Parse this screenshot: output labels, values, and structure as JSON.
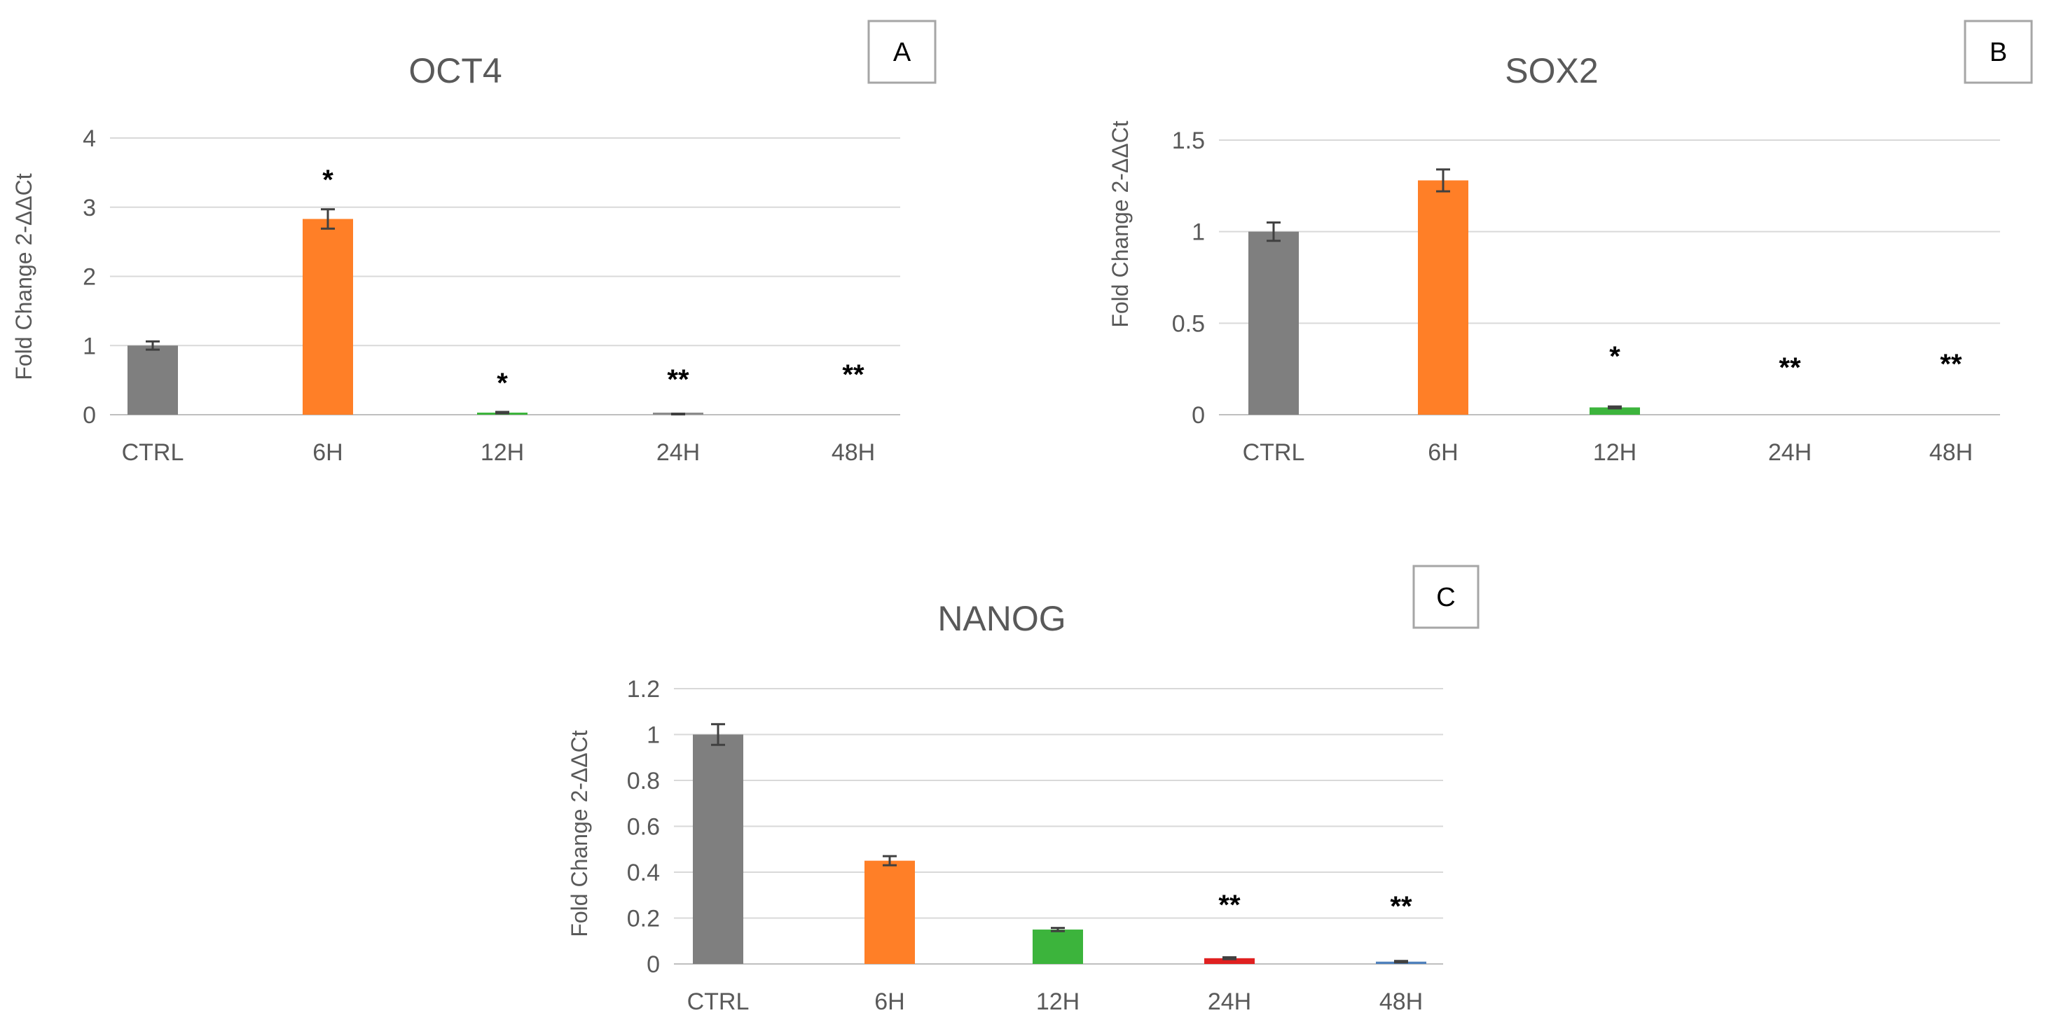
{
  "chart_data": [
    {
      "type": "bar",
      "panel_label": "A",
      "title": "OCT4",
      "ylabel": "Fold Change 2-ΔΔCt",
      "categories": [
        "CTRL",
        "6H",
        "12H",
        "24H",
        "48H"
      ],
      "values": [
        1.0,
        2.83,
        0.03,
        0.01,
        0.0
      ],
      "errors": [
        0.06,
        0.14,
        0.01,
        0.005,
        0.0
      ],
      "significance": [
        "",
        "*",
        "*",
        "**",
        "**"
      ],
      "ylim": [
        0,
        4
      ],
      "yticks": [
        "0",
        "1",
        "2",
        "3",
        "4"
      ],
      "grid": true,
      "bar_colors": [
        "#7f7f7f",
        "#ff7f27",
        "#3cb43c",
        "#8c8c8c",
        "#4f81bd"
      ]
    },
    {
      "type": "bar",
      "panel_label": "B",
      "title": "SOX2",
      "ylabel": "Fold Change 2-ΔΔCt",
      "categories": [
        "CTRL",
        "6H",
        "12H",
        "24H",
        "48H"
      ],
      "values": [
        1.0,
        1.28,
        0.04,
        0.0,
        0.0
      ],
      "errors": [
        0.05,
        0.06,
        0.005,
        0.0,
        0.0
      ],
      "significance": [
        "",
        "",
        "*",
        "**",
        "**"
      ],
      "ylim": [
        0,
        1.5
      ],
      "yticks": [
        "0",
        "0.5",
        "1",
        "1.5"
      ],
      "grid": true,
      "bar_colors": [
        "#7f7f7f",
        "#ff7f27",
        "#3cb43c",
        "#e02020",
        "#4f81bd"
      ]
    },
    {
      "type": "bar",
      "panel_label": "C",
      "title": "NANOG",
      "ylabel": "Fold Change 2-ΔΔCt",
      "categories": [
        "CTRL",
        "6H",
        "12H",
        "24H",
        "48H"
      ],
      "values": [
        1.0,
        0.45,
        0.15,
        0.025,
        0.01
      ],
      "errors": [
        0.045,
        0.02,
        0.007,
        0.004,
        0.003
      ],
      "significance": [
        "",
        "",
        "",
        "**",
        "**"
      ],
      "ylim": [
        0,
        1.2
      ],
      "yticks": [
        "0",
        "0.2",
        "0.4",
        "0.6",
        "0.8",
        "1",
        "1.2"
      ],
      "grid": true,
      "bar_colors": [
        "#7f7f7f",
        "#ff7f27",
        "#3cb43c",
        "#e02020",
        "#4f81bd"
      ]
    }
  ]
}
